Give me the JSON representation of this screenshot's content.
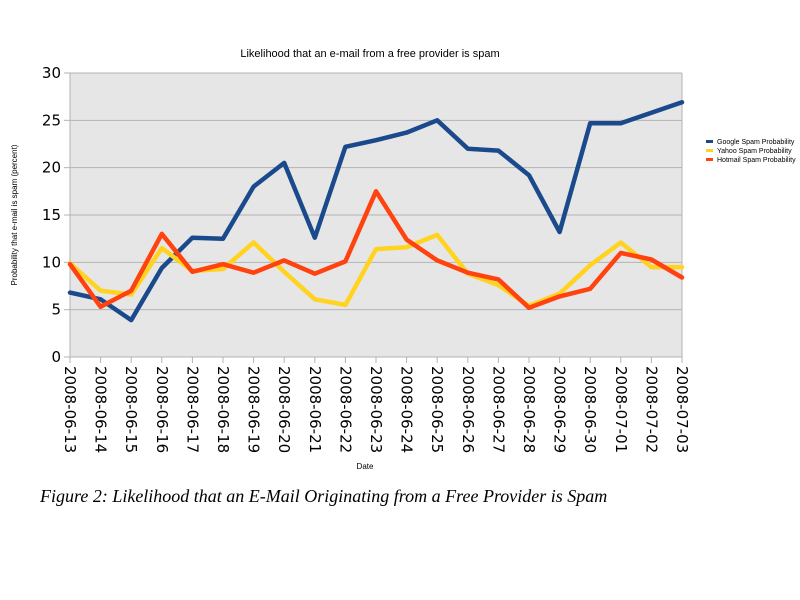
{
  "chart_data": {
    "type": "line",
    "title": "Likelihood that an e-mail from a free provider is spam",
    "xlabel": "Date",
    "ylabel": "Probability that e-mail is spam (percent)",
    "ylim": [
      0,
      30
    ],
    "yticks": [
      0,
      5,
      10,
      15,
      20,
      25,
      30
    ],
    "grid": true,
    "legend_position": "right",
    "categories": [
      "2008-06-13",
      "2008-06-14",
      "2008-06-15",
      "2008-06-16",
      "2008-06-17",
      "2008-06-18",
      "2008-06-19",
      "2008-06-20",
      "2008-06-21",
      "2008-06-22",
      "2008-06-23",
      "2008-06-24",
      "2008-06-25",
      "2008-06-26",
      "2008-06-27",
      "2008-06-28",
      "2008-06-29",
      "2008-06-30",
      "2008-07-01",
      "2008-07-02",
      "2008-07-03"
    ],
    "series": [
      {
        "name": "Google Spam Probability",
        "color": "#1a4a8c",
        "values": [
          6.8,
          6.1,
          3.9,
          9.4,
          12.6,
          12.5,
          18.0,
          20.5,
          12.6,
          22.2,
          22.9,
          23.7,
          25.0,
          22.0,
          21.8,
          19.2,
          13.2,
          24.7,
          24.7,
          25.8,
          26.9
        ]
      },
      {
        "name": "Yahoo Spam Probability",
        "color": "#ffd320",
        "values": [
          9.9,
          7.0,
          6.6,
          11.5,
          9.1,
          9.3,
          12.1,
          9.0,
          6.1,
          5.5,
          11.4,
          11.6,
          12.9,
          8.8,
          7.6,
          5.4,
          6.7,
          9.7,
          12.1,
          9.5,
          9.5
        ]
      },
      {
        "name": "Hotmail Spam Probability",
        "color": "#ff420e",
        "values": [
          9.8,
          5.3,
          7.0,
          13.0,
          9.0,
          9.8,
          8.9,
          10.2,
          8.8,
          10.1,
          17.5,
          12.4,
          10.2,
          8.9,
          8.2,
          5.2,
          6.4,
          7.2,
          11.0,
          10.3,
          8.4
        ]
      }
    ]
  },
  "caption": "Figure 2: Likelihood that an E-Mail Originating from a Free Provider is Spam"
}
